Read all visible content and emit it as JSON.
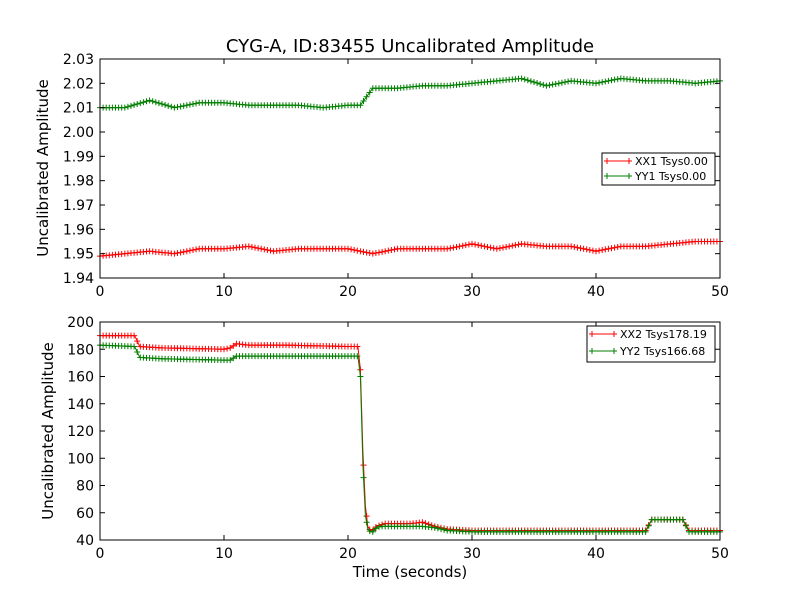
{
  "chart_data": [
    {
      "type": "line",
      "title": "CYG-A, ID:83455 Uncalibrated Amplitude",
      "xlabel": "",
      "ylabel": "Uncalibrated Amplitude",
      "xlim": [
        0,
        50
      ],
      "ylim": [
        1.94,
        2.03
      ],
      "xticks": [
        0,
        10,
        20,
        30,
        40,
        50
      ],
      "xticklabels": [
        "0",
        "10",
        "20",
        "30",
        "40",
        "50"
      ],
      "yticks": [
        1.94,
        1.95,
        1.96,
        1.97,
        1.98,
        1.99,
        2.0,
        2.01,
        2.02,
        2.03
      ],
      "yticklabels": [
        "1.94",
        "1.95",
        "1.96",
        "1.97",
        "1.98",
        "1.99",
        "2.00",
        "2.01",
        "2.02",
        "2.03"
      ],
      "grid": false,
      "legend": "center-right",
      "marker": "+",
      "series": [
        {
          "name": "XX1 Tsys0.00",
          "color": "#ff0000",
          "x": [
            0,
            2,
            4,
            6,
            8,
            10,
            12,
            14,
            16,
            18,
            20,
            22,
            24,
            26,
            28,
            30,
            32,
            34,
            36,
            38,
            40,
            42,
            44,
            46,
            48,
            50
          ],
          "y": [
            1.949,
            1.95,
            1.951,
            1.95,
            1.952,
            1.952,
            1.953,
            1.951,
            1.952,
            1.952,
            1.952,
            1.95,
            1.952,
            1.952,
            1.952,
            1.954,
            1.952,
            1.954,
            1.953,
            1.953,
            1.951,
            1.953,
            1.953,
            1.954,
            1.955,
            1.955
          ]
        },
        {
          "name": "YY1 Tsys0.00",
          "color": "#007f00",
          "x": [
            0,
            2,
            4,
            6,
            8,
            10,
            12,
            14,
            16,
            18,
            20,
            21,
            22,
            24,
            26,
            28,
            30,
            32,
            34,
            36,
            38,
            40,
            42,
            44,
            46,
            48,
            50
          ],
          "y": [
            2.01,
            2.01,
            2.013,
            2.01,
            2.012,
            2.012,
            2.011,
            2.011,
            2.011,
            2.01,
            2.011,
            2.011,
            2.018,
            2.018,
            2.019,
            2.019,
            2.02,
            2.021,
            2.022,
            2.019,
            2.021,
            2.02,
            2.022,
            2.021,
            2.021,
            2.02,
            2.021
          ]
        }
      ]
    },
    {
      "type": "line",
      "title": "",
      "xlabel": "Time (seconds)",
      "ylabel": "Uncalibrated Amplitude",
      "xlim": [
        0,
        50
      ],
      "ylim": [
        40,
        200
      ],
      "xticks": [
        0,
        10,
        20,
        30,
        40,
        50
      ],
      "xticklabels": [
        "0",
        "10",
        "20",
        "30",
        "40",
        "50"
      ],
      "yticks": [
        40,
        60,
        80,
        100,
        120,
        140,
        160,
        180,
        200
      ],
      "yticklabels": [
        "40",
        "60",
        "80",
        "100",
        "120",
        "140",
        "160",
        "180",
        "200"
      ],
      "grid": false,
      "legend": "top-right",
      "marker": "+",
      "series": [
        {
          "name": "XX2 Tsys178.19",
          "color": "#ff0000",
          "x": [
            0,
            2.8,
            3.2,
            5,
            10,
            10.5,
            11,
            12,
            15,
            20,
            20.8,
            21,
            21.2,
            21.4,
            21.6,
            21.8,
            22,
            22.3,
            22.6,
            23,
            24,
            25,
            26,
            27,
            28,
            30,
            35,
            40,
            43,
            44,
            44.5,
            47,
            47.5,
            50
          ],
          "y": [
            190,
            190,
            182,
            181,
            180,
            181,
            184,
            183,
            183,
            182,
            182,
            165,
            105,
            65,
            50,
            47,
            47,
            50,
            51,
            52,
            52,
            52,
            53,
            50,
            48,
            47,
            47,
            47,
            47,
            47,
            55,
            55,
            47,
            47
          ]
        },
        {
          "name": "YY2 Tsys166.68",
          "color": "#007f00",
          "x": [
            0,
            2.8,
            3.2,
            5,
            10,
            10.5,
            11,
            12,
            15,
            20,
            20.8,
            21,
            21.2,
            21.4,
            21.6,
            21.8,
            22,
            22.3,
            22.6,
            23,
            24,
            25,
            26,
            27,
            28,
            30,
            35,
            40,
            43,
            44,
            44.5,
            47,
            47.5,
            50
          ],
          "y": [
            183,
            182,
            174,
            173,
            172,
            172,
            175,
            175,
            175,
            175,
            175,
            160,
            95,
            58,
            48,
            46,
            46,
            49,
            50,
            50,
            50,
            50,
            50,
            49,
            47,
            46,
            46,
            46,
            46,
            46,
            55,
            55,
            46,
            46
          ]
        }
      ]
    }
  ]
}
